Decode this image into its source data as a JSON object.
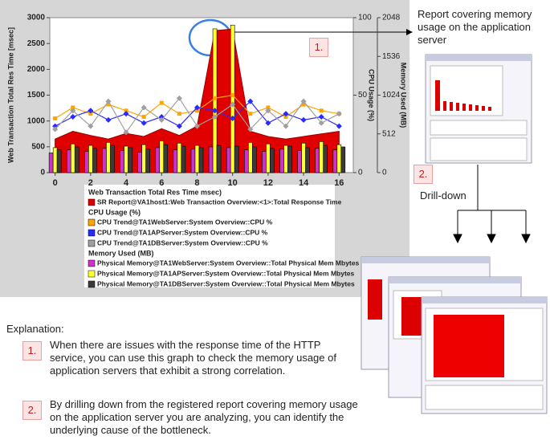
{
  "chart_data": {
    "type": "combo",
    "y_label": "Web Transaction Total Res Time [msec]",
    "y2_label": "CPU Usage (%)",
    "y3_label": "Memory Used (MB)",
    "legend_groups": {
      "y": "Web Transaction Total Res Time msec)",
      "y2": "CPU Usage (%)",
      "y3": "Memory Used (MB)"
    },
    "x": [
      0,
      1,
      2,
      3,
      4,
      5,
      6,
      7,
      8,
      9,
      10,
      11,
      12,
      13,
      14,
      15,
      16
    ],
    "xlim": [
      -0.3,
      16.8
    ],
    "xticks": [
      0,
      2,
      4,
      6,
      8,
      10,
      12,
      14,
      16
    ],
    "ylim": [
      0,
      3000
    ],
    "yticks": [
      0,
      500,
      1000,
      1500,
      2000,
      2500,
      3000
    ],
    "y2lim": [
      0,
      100
    ],
    "y2ticks": [
      0,
      50,
      100
    ],
    "y3lim": [
      0,
      2048
    ],
    "y3ticks": [
      0,
      512,
      1024,
      1536,
      2048
    ],
    "series": [
      {
        "name": "SR Report@VA1host1:Web Transaction Overview:<1>:Total Response Time",
        "axis": "y",
        "kind": "area",
        "color": "#e00000",
        "values": [
          650,
          800,
          720,
          650,
          760,
          700,
          850,
          720,
          900,
          2750,
          2780,
          800,
          700,
          650,
          700,
          750,
          800
        ]
      },
      {
        "name": "CPU Trend@TA1WebServer:System Overview::CPU %",
        "axis": "y2",
        "kind": "line",
        "marker": "square",
        "color": "#ffa500",
        "values": [
          35,
          42,
          38,
          44,
          40,
          36,
          45,
          38,
          40,
          48,
          50,
          38,
          42,
          36,
          44,
          40,
          38
        ]
      },
      {
        "name": "CPU Trend@TA1APServer:System Overview::CPU %",
        "axis": "y2",
        "kind": "line",
        "marker": "star",
        "color": "#2a2aff",
        "values": [
          30,
          36,
          40,
          34,
          38,
          32,
          36,
          30,
          42,
          40,
          35,
          46,
          32,
          38,
          34,
          36,
          30
        ]
      },
      {
        "name": "CPU Trend@TA1DBServer:System Overview::CPU %",
        "axis": "y2",
        "kind": "line",
        "marker": "diamond",
        "color": "#a0a0a0",
        "values": [
          28,
          40,
          30,
          46,
          26,
          42,
          34,
          48,
          30,
          36,
          44,
          28,
          40,
          30,
          46,
          32,
          38
        ]
      },
      {
        "name": "Physical Memory@TA1WebServer:System Overview::Total Physical Mem Mbytes",
        "axis": "y3",
        "kind": "bar",
        "color": "#cc33cc",
        "values": [
          260,
          300,
          280,
          320,
          290,
          270,
          330,
          300,
          310,
          340,
          330,
          300,
          280,
          310,
          290,
          320,
          300
        ]
      },
      {
        "name": "Physical Memory@TA1APServer:System Overview::Total Physical Mem Mbytes",
        "axis": "y3",
        "kind": "bar",
        "color": "#ffff33",
        "values": [
          330,
          380,
          360,
          400,
          350,
          370,
          420,
          390,
          360,
          1900,
          1950,
          400,
          380,
          360,
          390,
          410,
          370
        ]
      },
      {
        "name": "Physical Memory@TA1DBServer:System Overview::Total Physical Mem Mbytes",
        "axis": "y3",
        "kind": "bar",
        "color": "#3a3a3a",
        "values": [
          300,
          340,
          320,
          360,
          330,
          310,
          370,
          350,
          330,
          360,
          350,
          340,
          320,
          350,
          330,
          360,
          340
        ]
      }
    ]
  },
  "callouts": {
    "marker_1": "1.",
    "report_text": "Report covering memory usage on the application server",
    "marker_2": "2.",
    "drill_down": "Drill-down"
  },
  "explanation": {
    "title": "Explanation:",
    "items": [
      {
        "number": "1.",
        "text": "When there are issues with the response time of the HTTP service, you can use this graph to check the memory usage of application servers that exhibit a strong correlation."
      },
      {
        "number": "2.",
        "text": "By drilling down from the registered report covering memory usage on the application server you are analyzing, you can identify the underlying cause of the bottleneck."
      }
    ]
  }
}
